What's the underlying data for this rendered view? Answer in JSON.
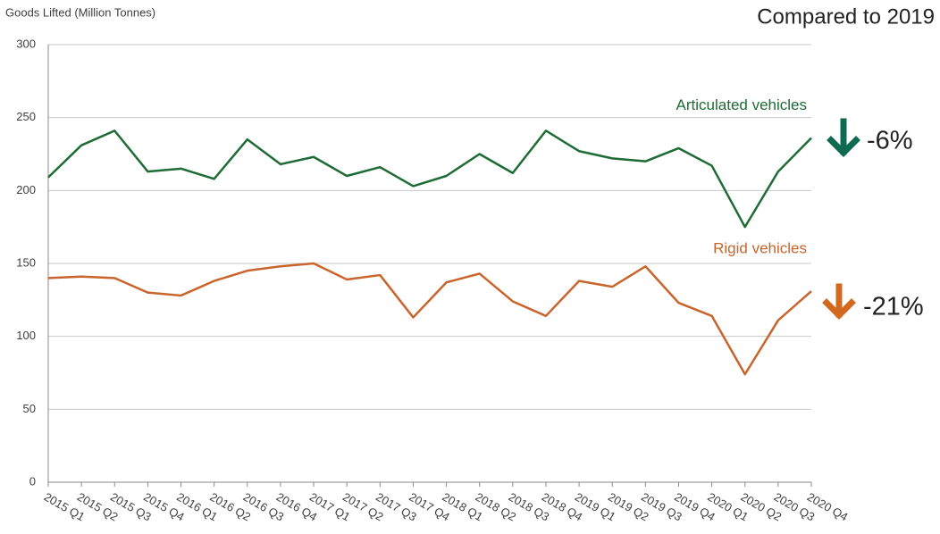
{
  "chart_data": {
    "type": "line",
    "y_label": "Goods Lifted (Million Tonnes)",
    "note": "Compared to 2019",
    "categories": [
      "2015 Q1",
      "2015 Q2",
      "2015 Q3",
      "2015 Q4",
      "2016 Q1",
      "2016 Q2",
      "2016 Q3",
      "2016 Q4",
      "2017 Q1",
      "2017 Q2",
      "2017 Q3",
      "2017 Q4",
      "2018 Q1",
      "2018 Q2",
      "2018 Q3",
      "2018 Q4",
      "2019 Q1",
      "2019 Q2",
      "2019 Q3",
      "2019 Q4",
      "2020 Q1",
      "2020 Q2",
      "2020 Q3",
      "2020 Q4"
    ],
    "series": [
      {
        "name": "Articulated vehicles",
        "color": "#1e6b35",
        "change": "-6%",
        "values": [
          209,
          231,
          241,
          213,
          215,
          208,
          235,
          218,
          223,
          210,
          216,
          203,
          210,
          225,
          212,
          241,
          227,
          222,
          220,
          229,
          217,
          175,
          213,
          236
        ]
      },
      {
        "name": "Rigid vehicles",
        "color": "#c8642c",
        "change": "-21%",
        "values": [
          140,
          141,
          140,
          130,
          128,
          138,
          145,
          148,
          150,
          139,
          142,
          113,
          137,
          143,
          124,
          114,
          138,
          134,
          148,
          123,
          114,
          74,
          111,
          131
        ]
      }
    ],
    "ylim": [
      0,
      300
    ],
    "yticks": [
      0,
      50,
      100,
      150,
      200,
      250,
      300
    ],
    "grid": true
  }
}
